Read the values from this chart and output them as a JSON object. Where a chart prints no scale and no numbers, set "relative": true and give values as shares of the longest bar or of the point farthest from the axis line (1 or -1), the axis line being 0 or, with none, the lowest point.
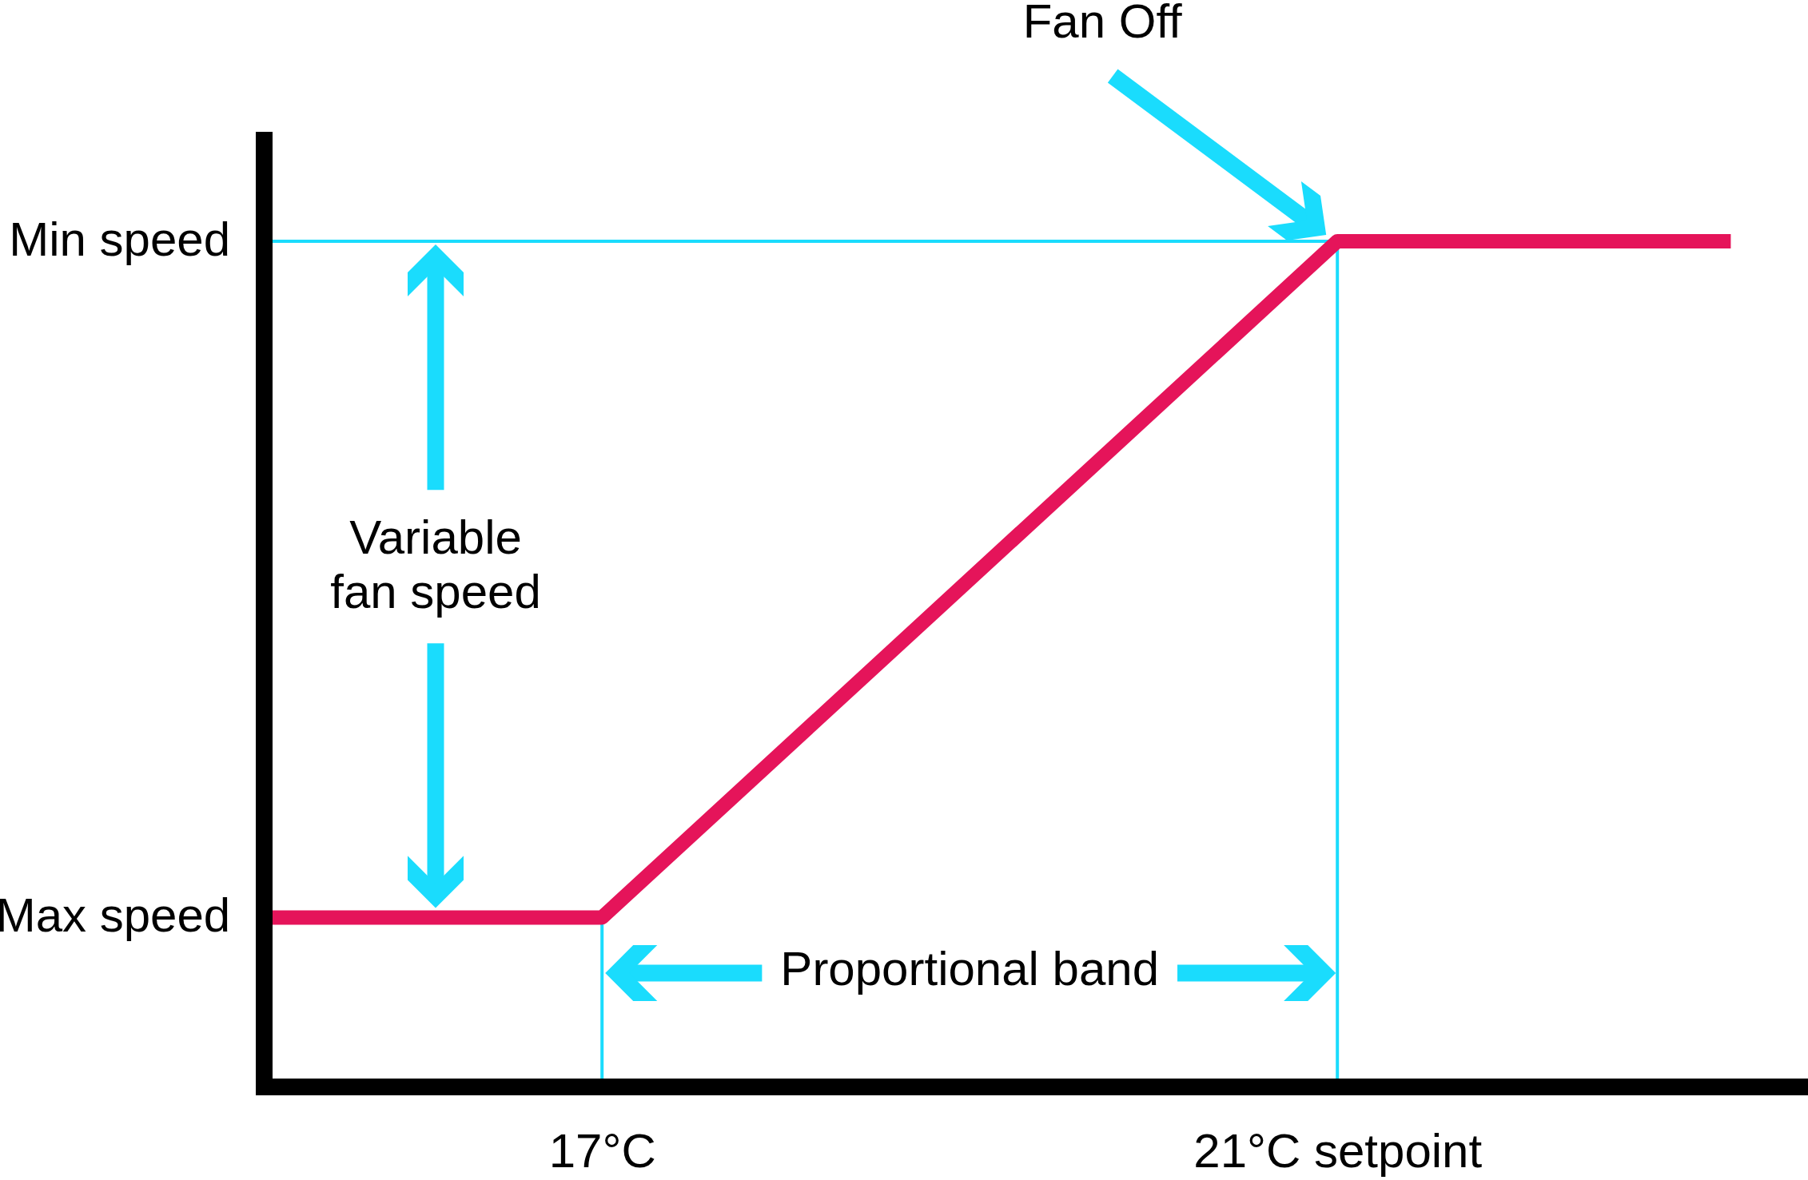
{
  "chart_data": {
    "type": "line",
    "relative": true,
    "x": [
      15.2,
      17,
      21,
      23.14
    ],
    "series": [
      {
        "color": "#e5145a",
        "values": [
          0.2,
          0.2,
          1,
          1
        ]
      }
    ],
    "xlim": [
      15.16,
      23.56
    ],
    "xticks": [
      {
        "value": 17,
        "label": "17°C"
      },
      {
        "value": 21,
        "label": "21°C setpoint"
      }
    ],
    "ref_lines": [
      {
        "axis": "y",
        "value": 1,
        "label": "Min speed",
        "color": "#1adcfd"
      },
      {
        "axis": "x",
        "value": 17,
        "color": "#1adcfd"
      },
      {
        "axis": "x",
        "value": 21,
        "color": "#1adcfd"
      }
    ],
    "annotations": [
      "Fan Off",
      {
        "text": "Max speed",
        "x": 15.2,
        "y": 0.2
      },
      "Variable\nfan speed",
      "Proportional band"
    ]
  }
}
